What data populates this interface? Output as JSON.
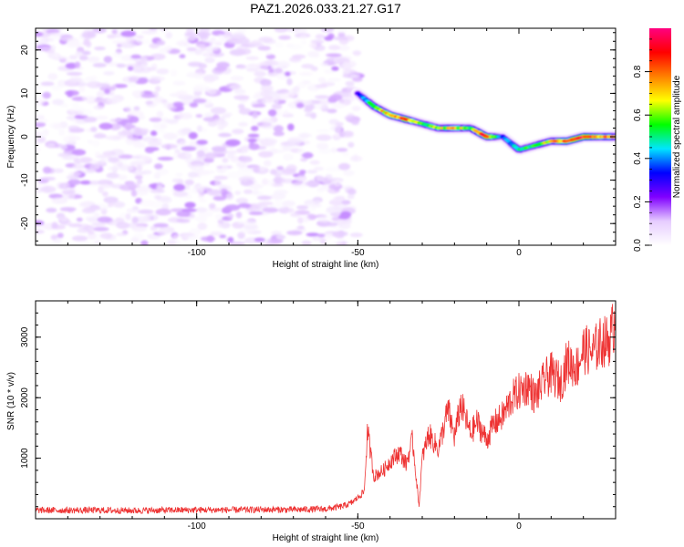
{
  "chart_data": [
    {
      "type": "heatmap",
      "title": "PAZ1.2026.033.21.27.G17",
      "xlabel": "Height of straight line (km)",
      "ylabel": "Frequency (Hz)",
      "xlim": [
        -150,
        30
      ],
      "ylim": [
        -25,
        25
      ],
      "xticks": [
        -100,
        -50,
        0
      ],
      "yticks": [
        -20,
        -10,
        0,
        10,
        20
      ],
      "colorbar": {
        "label": "Normalized spectral amplitude",
        "range": [
          0.0,
          1.0
        ],
        "ticks": [
          0.0,
          0.2,
          0.4,
          0.6,
          0.8
        ],
        "tick_labels": [
          "0.0",
          "0.2",
          "0.4",
          "0.6",
          "0.8"
        ],
        "colors": [
          "#ffffff",
          "#e6ccff",
          "#8000ff",
          "#0000ff",
          "#00e5ff",
          "#00ff00",
          "#ffff00",
          "#ff8000",
          "#ff0000",
          "#ff0080"
        ]
      },
      "noise_region": {
        "x_range": [
          -150,
          -50
        ],
        "amplitude_range": [
          0.0,
          0.15
        ]
      },
      "signal_ridge": {
        "x": [
          -50,
          -45,
          -40,
          -35,
          -30,
          -25,
          -20,
          -15,
          -10,
          -5,
          0,
          5,
          10,
          15,
          20,
          25,
          30
        ],
        "frequency": [
          10,
          7,
          5,
          4,
          3,
          2,
          2,
          2,
          0,
          0,
          -3,
          -2,
          -1,
          -1,
          0,
          0,
          0
        ],
        "peak_amplitude": [
          0.3,
          0.6,
          0.75,
          0.8,
          0.55,
          0.65,
          0.7,
          0.55,
          0.9,
          0.35,
          0.5,
          0.55,
          0.7,
          0.85,
          0.9,
          0.75,
          0.7
        ]
      }
    },
    {
      "type": "line",
      "xlabel": "Height of straight line (km)",
      "ylabel": "SNR (10 * v/v)",
      "xlim": [
        -150,
        30
      ],
      "ylim": [
        0,
        3600
      ],
      "xticks": [
        -100,
        -50,
        0
      ],
      "yticks": [
        1000,
        2000,
        3000
      ],
      "color": "#ee3333",
      "series": [
        {
          "name": "SNR",
          "x": [
            -150,
            -140,
            -130,
            -120,
            -110,
            -100,
            -90,
            -80,
            -70,
            -60,
            -55,
            -52,
            -50,
            -48,
            -47,
            -45,
            -42,
            -40,
            -37,
            -35,
            -33,
            -31,
            -30,
            -28,
            -25,
            -22,
            -20,
            -18,
            -15,
            -13,
            -10,
            -8,
            -5,
            -2,
            0,
            3,
            5,
            8,
            10,
            13,
            15,
            18,
            20,
            23,
            25,
            28,
            30
          ],
          "y": [
            140,
            140,
            140,
            135,
            140,
            145,
            145,
            150,
            150,
            160,
            200,
            260,
            350,
            450,
            1450,
            700,
            800,
            950,
            1100,
            900,
            1300,
            200,
            1000,
            1400,
            1150,
            1800,
            1350,
            1900,
            1400,
            1600,
            1300,
            1550,
            1700,
            2000,
            2100,
            2200,
            2000,
            2300,
            2400,
            2250,
            2600,
            2500,
            2800,
            2750,
            2900,
            2950,
            3300
          ]
        }
      ]
    }
  ]
}
